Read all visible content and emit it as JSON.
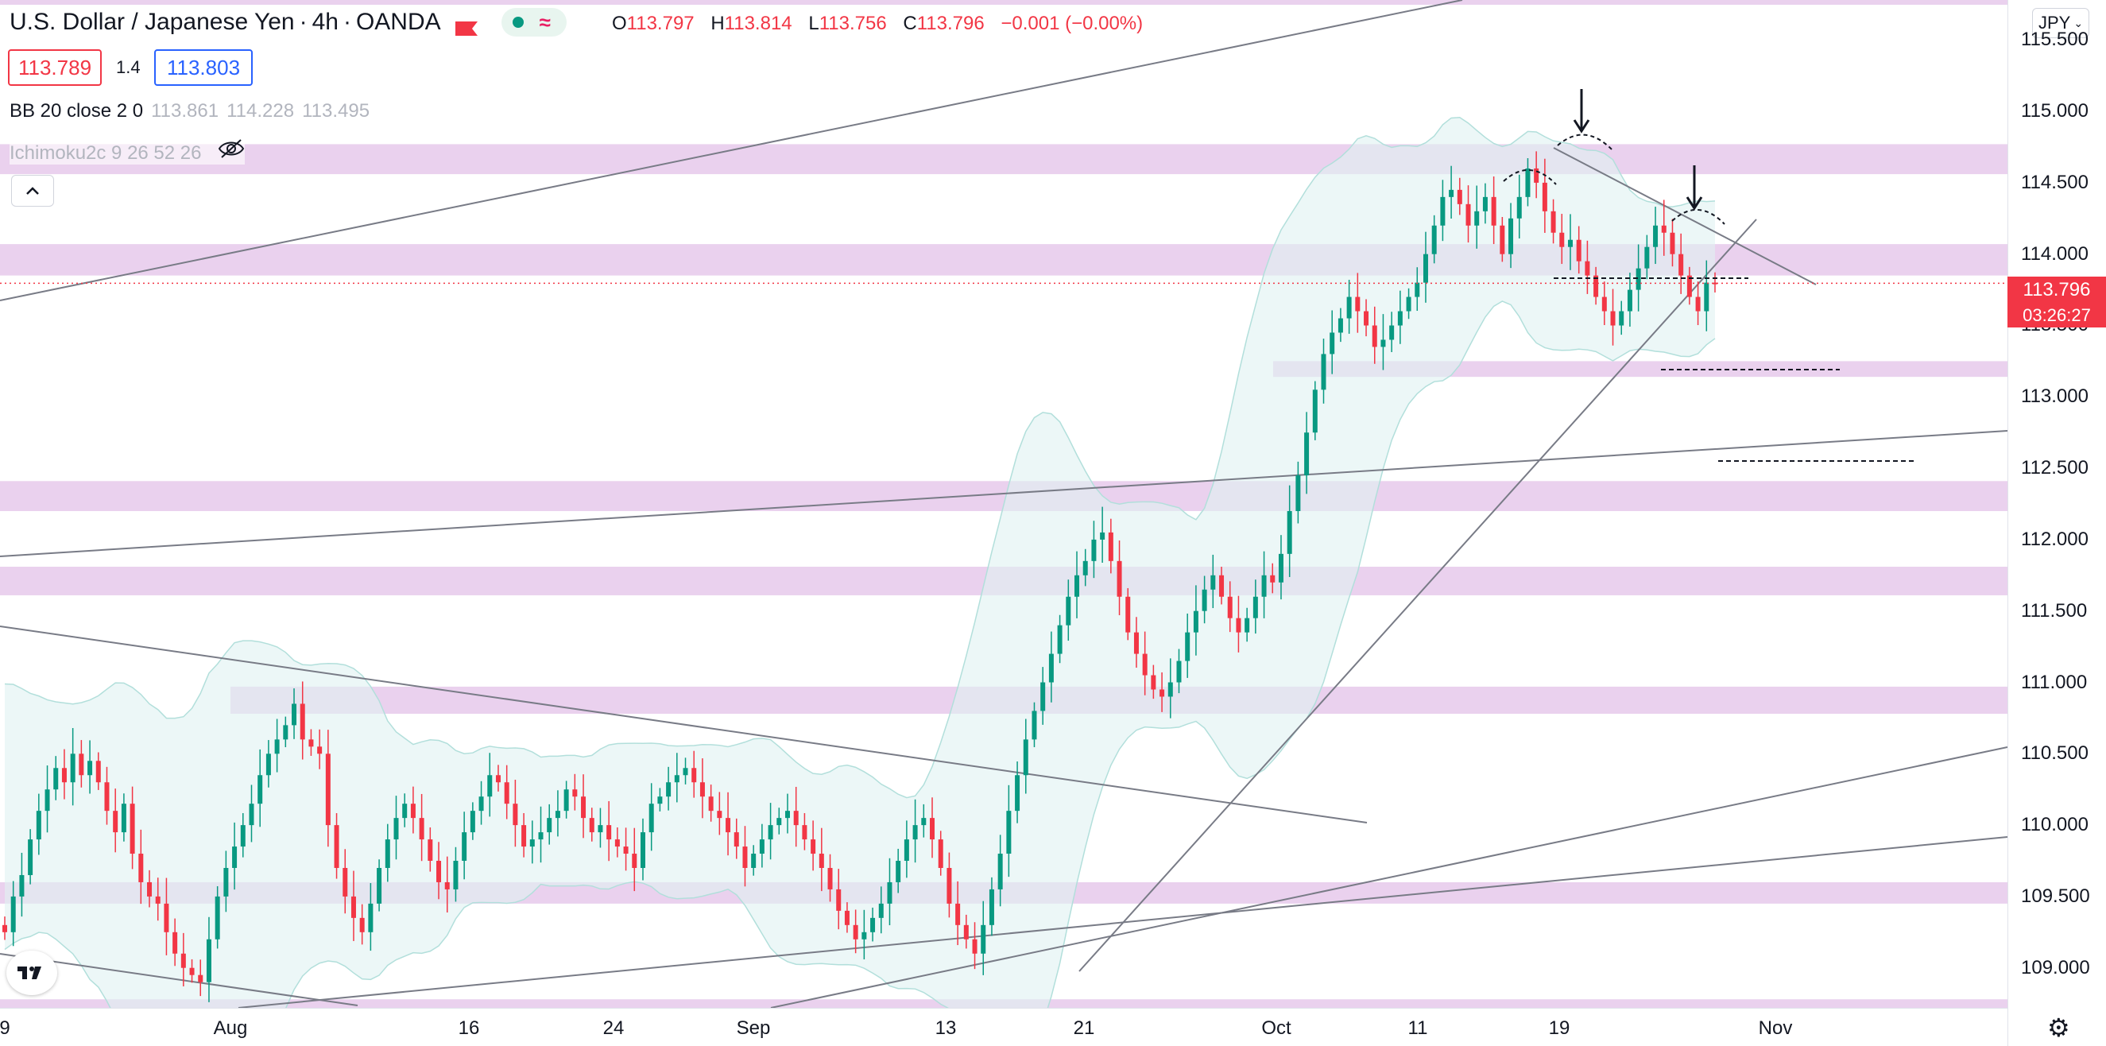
{
  "header": {
    "symbol": "U.S. Dollar / Japanese Yen",
    "interval": "4h",
    "broker": "OANDA",
    "ohlc": {
      "o_label": "O",
      "o": "113.797",
      "h_label": "H",
      "h": "113.814",
      "l_label": "L",
      "l": "113.756",
      "c_label": "C",
      "c": "113.796",
      "chg": "−0.001 (−0.00%)"
    },
    "bid": "113.789",
    "spread": "1.4",
    "ask": "113.803"
  },
  "indicators": {
    "bb_label": "BB 20 close 2 0",
    "bb_values": [
      "113.861",
      "114.228",
      "113.495"
    ],
    "ichimoku_label": "Ichimoku2c 9 26 52 26"
  },
  "y_axis": {
    "currency": "JPY",
    "ticks": [
      "115.500",
      "115.000",
      "114.500",
      "114.000",
      "113.500",
      "113.000",
      "112.500",
      "112.000",
      "111.500",
      "111.000",
      "110.500",
      "110.000",
      "109.500",
      "109.000"
    ],
    "last_price": "113.796",
    "countdown": "03:26:27"
  },
  "x_axis": {
    "ticks": [
      "9",
      "Aug",
      "16",
      "24",
      "Sep",
      "13",
      "21",
      "Oct",
      "11",
      "19",
      "Nov"
    ]
  },
  "colors": {
    "up": "#089981",
    "down": "#f23645",
    "zone": "#e1bee7",
    "band_fill": "#e0f2f1",
    "trend": "#787b86"
  },
  "icons": {
    "flag": "flag-icon",
    "visibility": "eye-off-icon",
    "collapse": "chevron-up-icon",
    "settings": "gear-icon",
    "logo": "tradingview-logo"
  },
  "chart_data": {
    "type": "candlestick",
    "symbol": "USDJPY",
    "y_range": [
      108.72,
      115.78
    ],
    "zones": [
      [
        114.56,
        114.77
      ],
      [
        113.85,
        114.07
      ],
      [
        113.14,
        113.25
      ],
      [
        112.2,
        112.41
      ],
      [
        111.61,
        111.81
      ],
      [
        110.78,
        110.97
      ],
      [
        109.45,
        109.6
      ],
      [
        108.66,
        108.78
      ]
    ],
    "closes": [
      109.25,
      109.5,
      109.65,
      109.9,
      110.1,
      110.25,
      110.4,
      110.3,
      110.5,
      110.35,
      110.45,
      110.3,
      110.1,
      109.95,
      110.15,
      109.8,
      109.6,
      109.5,
      109.45,
      109.25,
      109.1,
      109.0,
      108.95,
      108.9,
      109.2,
      109.5,
      109.7,
      109.85,
      110.0,
      110.15,
      110.35,
      110.5,
      110.6,
      110.7,
      110.85,
      110.6,
      110.55,
      110.5,
      110.0,
      109.7,
      109.5,
      109.35,
      109.25,
      109.45,
      109.7,
      109.9,
      110.05,
      110.15,
      110.05,
      109.9,
      109.75,
      109.6,
      109.55,
      109.75,
      109.95,
      110.1,
      110.2,
      110.35,
      110.3,
      110.15,
      110.0,
      109.85,
      109.9,
      109.95,
      110.05,
      110.1,
      110.25,
      110.2,
      110.05,
      109.95,
      110.0,
      109.9,
      109.85,
      109.8,
      109.7,
      109.95,
      110.15,
      110.2,
      110.3,
      110.35,
      110.4,
      110.3,
      110.2,
      110.1,
      110.05,
      109.95,
      109.85,
      109.7,
      109.8,
      109.9,
      110.0,
      110.05,
      110.1,
      110.0,
      109.9,
      109.8,
      109.7,
      109.55,
      109.4,
      109.3,
      109.2,
      109.25,
      109.35,
      109.45,
      109.6,
      109.75,
      109.9,
      110.0,
      110.05,
      109.9,
      109.7,
      109.45,
      109.3,
      109.2,
      109.1,
      109.3,
      109.55,
      109.8,
      110.1,
      110.35,
      110.6,
      110.8,
      111.0,
      111.2,
      111.4,
      111.6,
      111.75,
      111.85,
      112.0,
      112.05,
      111.85,
      111.6,
      111.35,
      111.2,
      111.05,
      110.95,
      110.9,
      111.0,
      111.15,
      111.35,
      111.5,
      111.65,
      111.75,
      111.6,
      111.45,
      111.35,
      111.45,
      111.6,
      111.75,
      111.7,
      111.9,
      112.2,
      112.45,
      112.75,
      113.05,
      113.3,
      113.45,
      113.55,
      113.7,
      113.6,
      113.5,
      113.35,
      113.4,
      113.5,
      113.6,
      113.7,
      113.8,
      114.0,
      114.2,
      114.4,
      114.45,
      114.35,
      114.2,
      114.3,
      114.4,
      114.2,
      114.0,
      114.25,
      114.4,
      114.6,
      114.5,
      114.3,
      114.15,
      114.05,
      114.1,
      113.95,
      113.85,
      113.7,
      113.6,
      113.5,
      113.6,
      113.75,
      113.9,
      114.05,
      114.2,
      114.15,
      114.0,
      113.85,
      113.7,
      113.6,
      113.8,
      113.796
    ]
  }
}
